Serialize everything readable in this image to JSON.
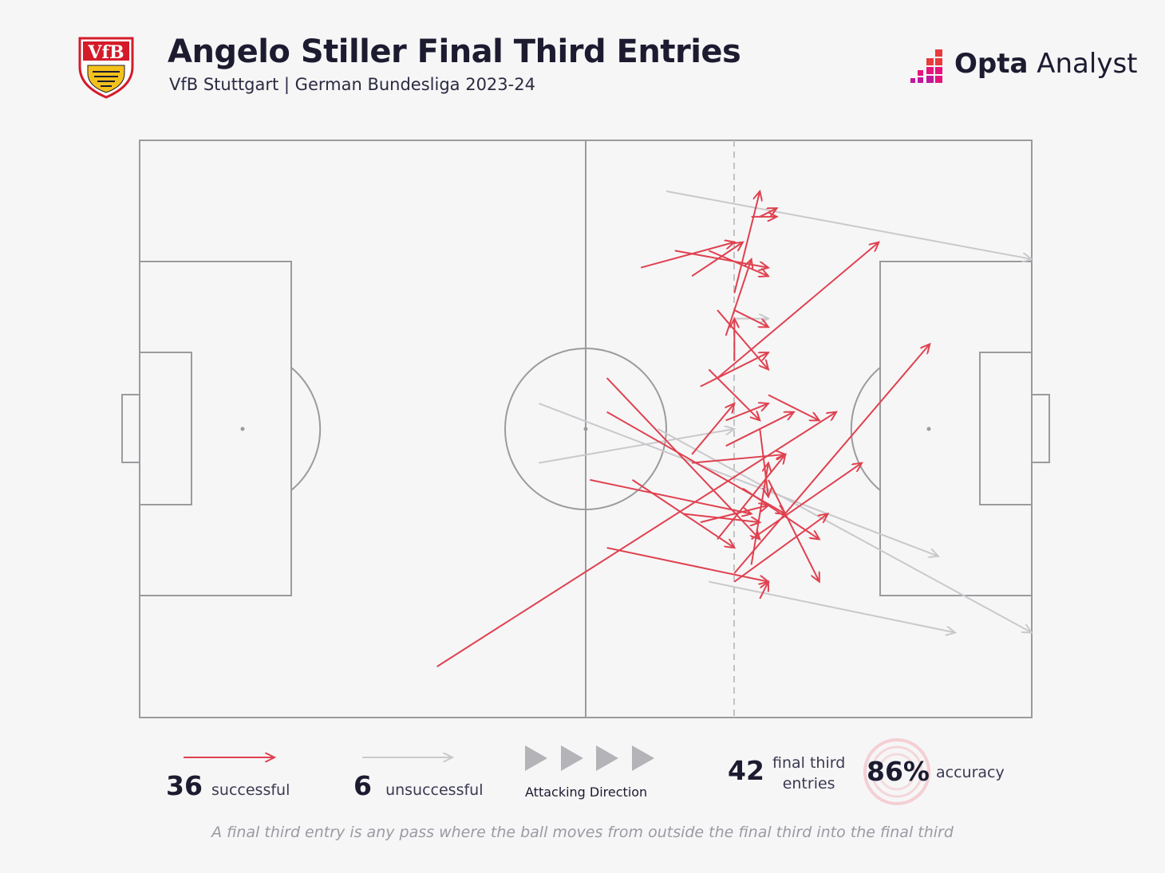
{
  "header": {
    "title": "Angelo Stiller Final Third Entries",
    "subtitle": "VfB Stuttgart | German Bundesliga 2023-24",
    "crest_text": "VfB",
    "brand_bold": "Opta",
    "brand_light": "Analyst"
  },
  "colors": {
    "successful": "#e0414f",
    "unsuccessful": "#c9c9cc",
    "pitch_line": "#9b9b9e",
    "text_dark": "#1c1b30",
    "brand_pink": "#e5147a",
    "brand_red": "#e83b3b",
    "crest_red": "#d51b29",
    "crest_yellow": "#f3c11b"
  },
  "legend": {
    "successful_count": "36",
    "successful_label": "successful",
    "unsuccessful_count": "6",
    "unsuccessful_label": "unsuccessful",
    "direction_label": "Attacking Direction",
    "entries_count": "42",
    "entries_label_1": "final third",
    "entries_label_2": "entries",
    "accuracy_value": "86%",
    "accuracy_label": "accuracy"
  },
  "footnote": "A final third entry is any pass where the ball moves from outside the final third into the final third",
  "chart_data": {
    "type": "pass-map",
    "pitch": {
      "length": 105,
      "width": 68,
      "final_third_line": 70
    },
    "series": [
      {
        "name": "successful",
        "passes": [
          {
            "x": [
              35,
              82
            ],
            "y": [
              62,
              32
            ]
          },
          {
            "x": [
              58,
              70
            ],
            "y": [
              40,
              48
            ]
          },
          {
            "x": [
              55,
              74
            ],
            "y": [
              48,
              52
            ]
          },
          {
            "x": [
              53,
              72
            ],
            "y": [
              40,
              44
            ]
          },
          {
            "x": [
              55,
              76
            ],
            "y": [
              32,
              44
            ]
          },
          {
            "x": [
              55,
              73
            ],
            "y": [
              28,
              47
            ]
          },
          {
            "x": [
              59,
              70
            ],
            "y": [
              15,
              12
            ]
          },
          {
            "x": [
              63,
              74
            ],
            "y": [
              13,
              15
            ]
          },
          {
            "x": [
              65,
              71
            ],
            "y": [
              16,
              12
            ]
          },
          {
            "x": [
              67,
              74
            ],
            "y": [
              13,
              16
            ]
          },
          {
            "x": [
              70,
              73
            ],
            "y": [
              18,
              6
            ]
          },
          {
            "x": [
              68,
              74
            ],
            "y": [
              20,
              27
            ]
          },
          {
            "x": [
              69,
              72
            ],
            "y": [
              23,
              14
            ]
          },
          {
            "x": [
              68,
              87
            ],
            "y": [
              28,
              12
            ]
          },
          {
            "x": [
              70,
              70
            ],
            "y": [
              26,
              21
            ]
          },
          {
            "x": [
              66,
              74
            ],
            "y": [
              29,
              25
            ]
          },
          {
            "x": [
              73,
              74
            ],
            "y": [
              34,
              42
            ]
          },
          {
            "x": [
              65,
              76
            ],
            "y": [
              38,
              37
            ]
          },
          {
            "x": [
              65,
              70
            ],
            "y": [
              37,
              31
            ]
          },
          {
            "x": [
              72,
              85
            ],
            "y": [
              47,
              38
            ]
          },
          {
            "x": [
              73,
              74
            ],
            "y": [
              54,
              52
            ]
          },
          {
            "x": [
              64,
              73
            ],
            "y": [
              44,
              45
            ]
          },
          {
            "x": [
              66,
              74
            ],
            "y": [
              45,
              43
            ]
          },
          {
            "x": [
              68,
              76
            ],
            "y": [
              47,
              37
            ]
          },
          {
            "x": [
              71,
              80
            ],
            "y": [
              41,
              47
            ]
          },
          {
            "x": [
              70,
              93
            ],
            "y": [
              51,
              24
            ]
          },
          {
            "x": [
              69,
              77
            ],
            "y": [
              36,
              32
            ]
          },
          {
            "x": [
              70,
              74
            ],
            "y": [
              20,
              22
            ]
          },
          {
            "x": [
              72,
              75
            ],
            "y": [
              9,
              9
            ]
          },
          {
            "x": [
              73,
              75
            ],
            "y": [
              9,
              8
            ]
          },
          {
            "x": [
              74,
              80
            ],
            "y": [
              40,
              52
            ]
          },
          {
            "x": [
              70,
              81
            ],
            "y": [
              52,
              44
            ]
          },
          {
            "x": [
              72,
              74
            ],
            "y": [
              50,
              38
            ]
          },
          {
            "x": [
              67,
              73
            ],
            "y": [
              27,
              33
            ]
          },
          {
            "x": [
              69,
              74
            ],
            "y": [
              33,
              31
            ]
          },
          {
            "x": [
              74,
              80
            ],
            "y": [
              30,
              33
            ]
          }
        ]
      },
      {
        "name": "unsuccessful",
        "passes": [
          {
            "x": [
              62,
              105
            ],
            "y": [
              6,
              14
            ]
          },
          {
            "x": [
              47,
              70
            ],
            "y": [
              38,
              34
            ]
          },
          {
            "x": [
              47,
              94
            ],
            "y": [
              31,
              49
            ]
          },
          {
            "x": [
              61,
              105
            ],
            "y": [
              34,
              58
            ]
          },
          {
            "x": [
              67,
              96
            ],
            "y": [
              52,
              58
            ]
          },
          {
            "x": [
              70,
              74
            ],
            "y": [
              21,
              21
            ]
          }
        ]
      }
    ],
    "attacking_direction": "left-to-right"
  }
}
